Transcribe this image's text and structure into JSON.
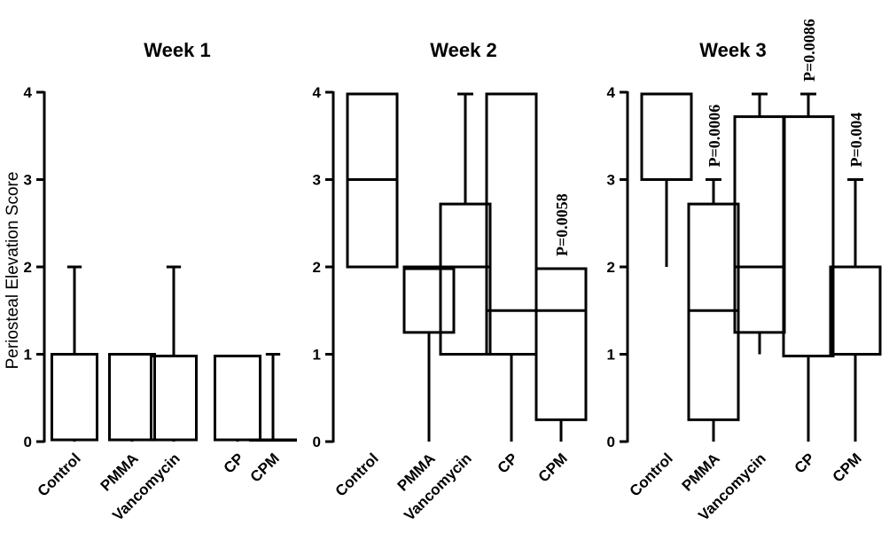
{
  "chart_data": {
    "type": "boxplot",
    "ylabel": "Periosteal Elevation Score",
    "ylim": [
      0,
      4
    ],
    "yticks": [
      "0",
      "1",
      "2",
      "3",
      "4"
    ],
    "categories": [
      "Control",
      "PMMA",
      "Vancomycin",
      "CP",
      "CPM"
    ],
    "panels": [
      {
        "title": "Week 1",
        "boxes": [
          {
            "category": "Control",
            "min": 0,
            "q1": 0.02,
            "median": 1,
            "q3": 1,
            "max": 2,
            "pvalue": ""
          },
          {
            "category": "PMMA",
            "min": 0,
            "q1": 0.02,
            "median": 1,
            "q3": 1,
            "max": 1,
            "pvalue": ""
          },
          {
            "category": "Vancomycin",
            "min": 0,
            "q1": 0.02,
            "median": 0.98,
            "q3": 0.98,
            "max": 2,
            "pvalue": ""
          },
          {
            "category": "CP",
            "min": 0,
            "q1": 0.02,
            "median": 0.98,
            "q3": 0.98,
            "max": 0.98,
            "pvalue": ""
          },
          {
            "category": "CPM",
            "min": 0,
            "q1": 0.02,
            "median": 0.02,
            "q3": 0.02,
            "max": 1,
            "pvalue": ""
          }
        ]
      },
      {
        "title": "Week 2",
        "boxes": [
          {
            "category": "Control",
            "min": 2,
            "q1": 2,
            "median": 3,
            "q3": 3.98,
            "max": 3.98,
            "pvalue": ""
          },
          {
            "category": "PMMA",
            "min": 0,
            "q1": 1.25,
            "median": 1.98,
            "q3": 2,
            "max": 2,
            "pvalue": ""
          },
          {
            "category": "Vancomycin",
            "min": 1,
            "q1": 1,
            "median": 2,
            "q3": 2.72,
            "max": 3.98,
            "pvalue": ""
          },
          {
            "category": "CP",
            "min": 0,
            "q1": 1,
            "median": 1.5,
            "q3": 3.98,
            "max": 3.98,
            "pvalue": ""
          },
          {
            "category": "CPM",
            "min": 0,
            "q1": 0.25,
            "median": 1.5,
            "q3": 1.98,
            "max": 1.98,
            "pvalue": "P=0.0058"
          }
        ]
      },
      {
        "title": "Week 3",
        "boxes": [
          {
            "category": "Control",
            "min": 2,
            "q1": 3,
            "median": 3.98,
            "q3": 3.98,
            "max": 3.98,
            "pvalue": ""
          },
          {
            "category": "PMMA",
            "min": 0,
            "q1": 0.25,
            "median": 1.5,
            "q3": 2.72,
            "max": 3,
            "pvalue": "P=0.0006"
          },
          {
            "category": "Vancomycin",
            "min": 1,
            "q1": 1.25,
            "median": 2,
            "q3": 3.72,
            "max": 3.98,
            "pvalue": ""
          },
          {
            "category": "CP",
            "min": 0,
            "q1": 0.98,
            "median": 0.98,
            "q3": 3.72,
            "max": 3.98,
            "pvalue": "P=0.0086"
          },
          {
            "category": "CPM",
            "min": 0,
            "q1": 1,
            "median": 2,
            "q3": 2,
            "max": 3,
            "pvalue": "P=0.004"
          }
        ]
      }
    ]
  }
}
